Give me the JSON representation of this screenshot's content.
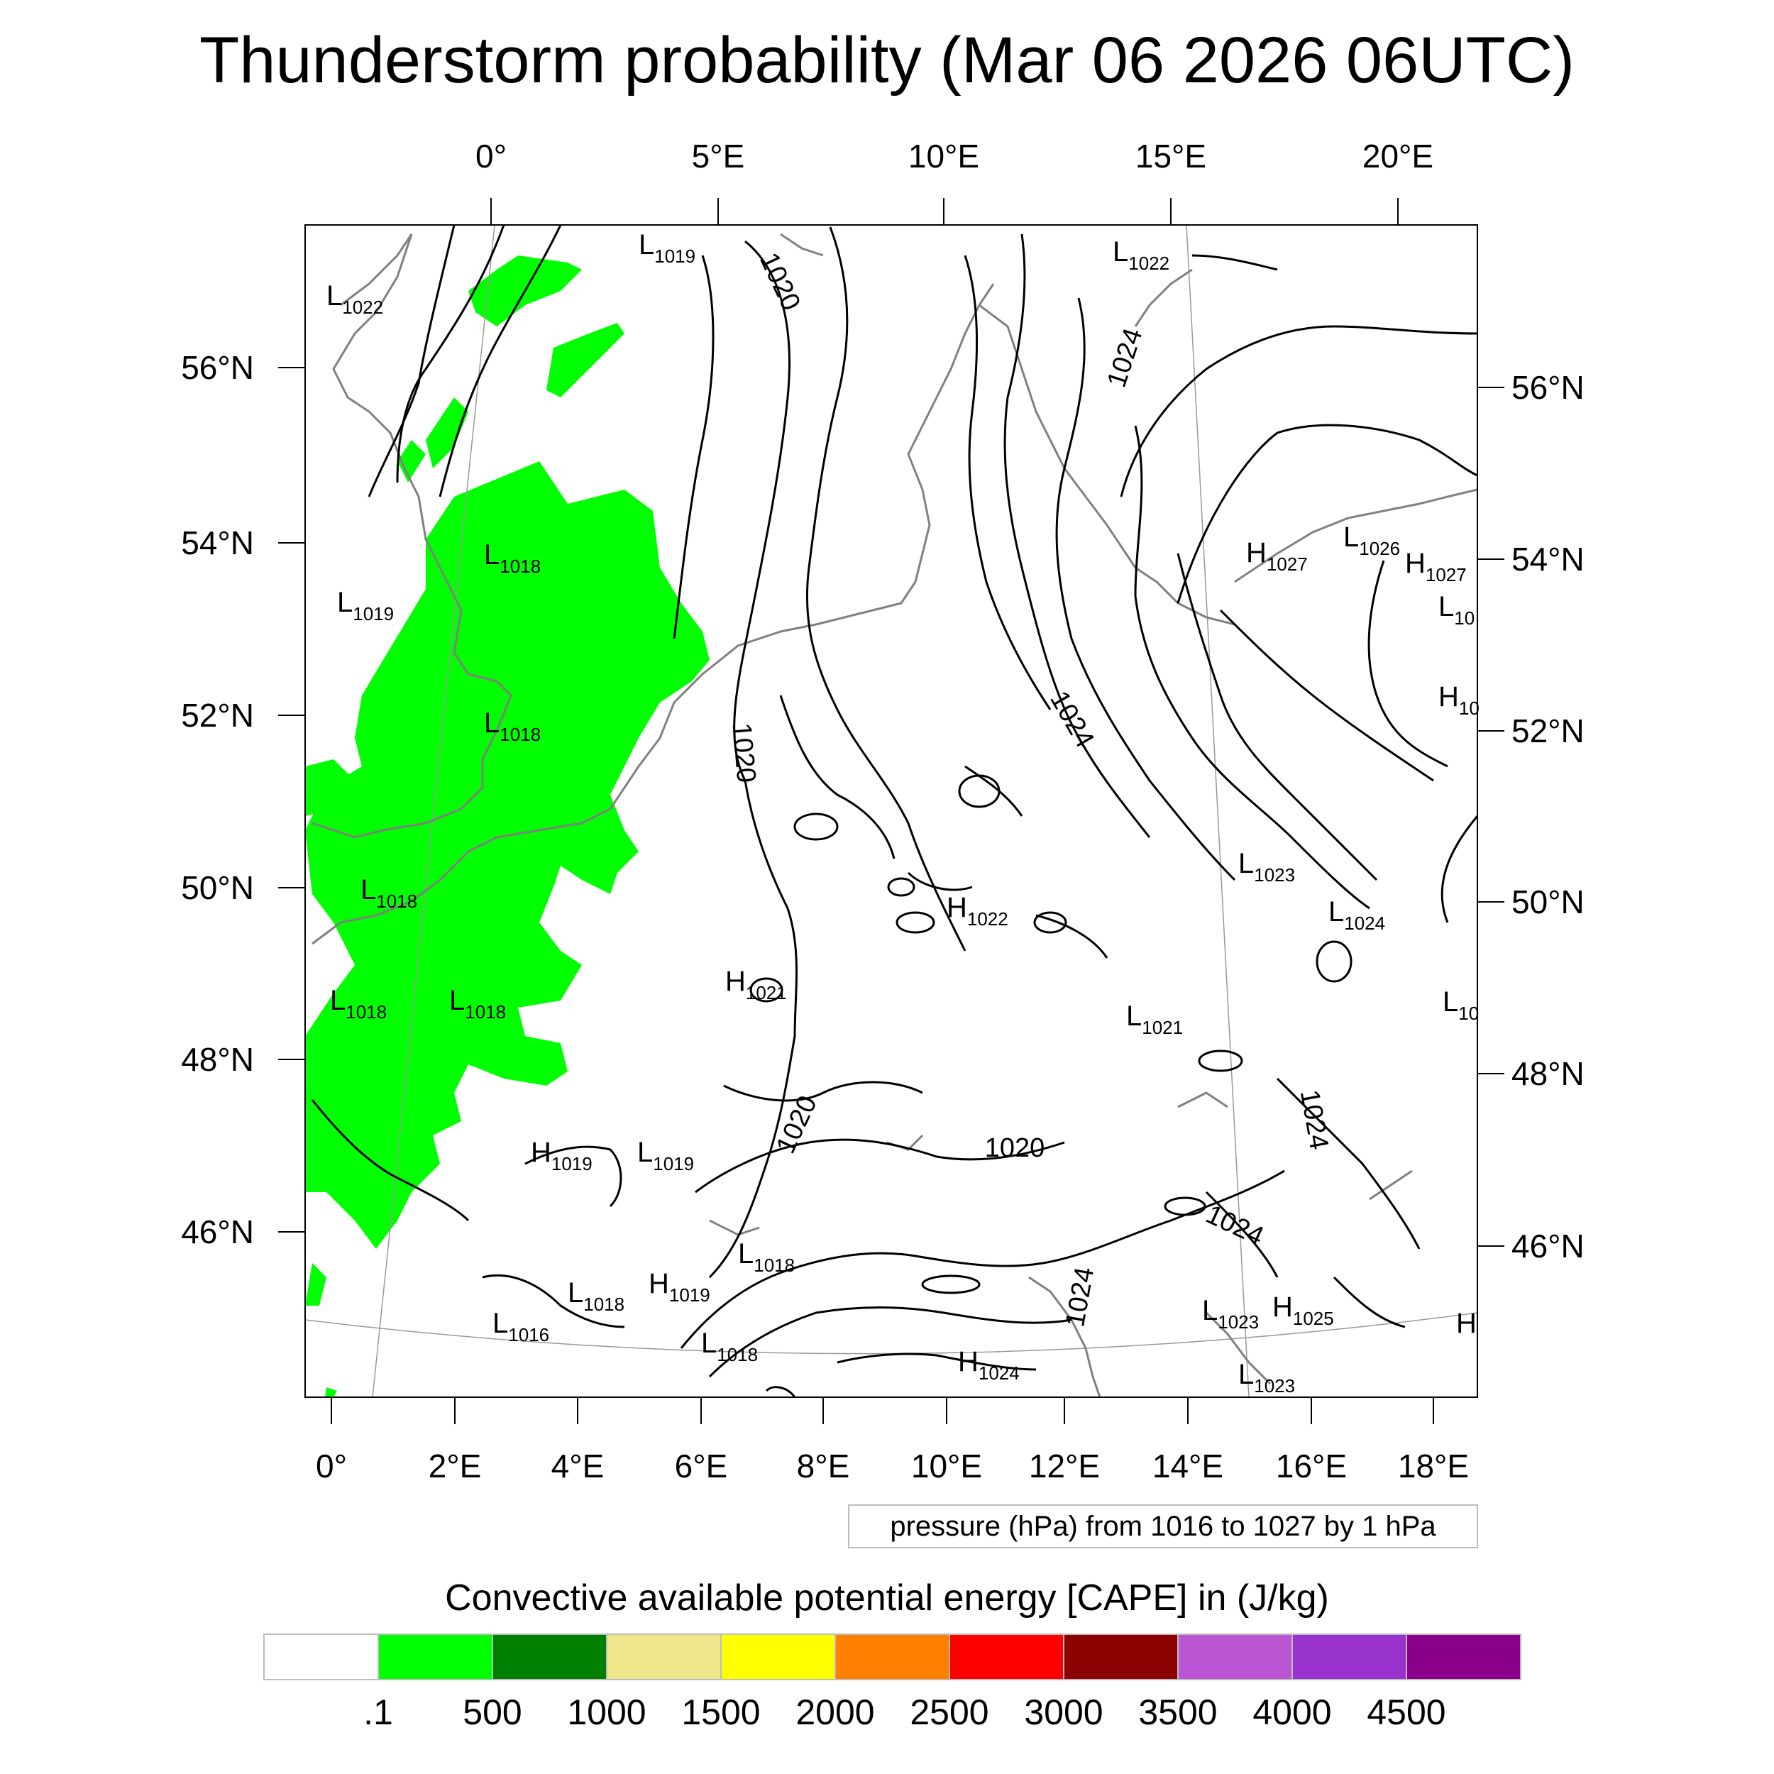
{
  "title": "Thunderstorm probability (Mar 06 2026 06UTC)",
  "map": {
    "top_lon_labels": [
      "0°",
      "5°E",
      "10°E",
      "15°E",
      "20°E"
    ],
    "bottom_lon_labels": [
      "0°",
      "2°E",
      "4°E",
      "6°E",
      "8°E",
      "10°E",
      "12°E",
      "14°E",
      "16°E",
      "18°E"
    ],
    "left_lat_labels": [
      "56°N",
      "54°N",
      "52°N",
      "50°N",
      "48°N",
      "46°N"
    ],
    "right_lat_labels": [
      "56°N",
      "54°N",
      "52°N",
      "50°N",
      "48°N",
      "46°N"
    ],
    "isobar_labels": [
      "1020",
      "1020",
      "1020",
      "1020",
      "1024",
      "1024",
      "1024",
      "1024",
      "1024"
    ],
    "pressure_centers": [
      {
        "kind": "L",
        "value": "1022"
      },
      {
        "kind": "L",
        "value": "1019"
      },
      {
        "kind": "L",
        "value": "1022"
      },
      {
        "kind": "L",
        "value": "1018"
      },
      {
        "kind": "L",
        "value": "1019"
      },
      {
        "kind": "L",
        "value": "1018"
      },
      {
        "kind": "L",
        "value": "1018"
      },
      {
        "kind": "L",
        "value": "1018"
      },
      {
        "kind": "L",
        "value": "1018"
      },
      {
        "kind": "H",
        "value": "1022"
      },
      {
        "kind": "H",
        "value": "1021"
      },
      {
        "kind": "L",
        "value": "1021"
      },
      {
        "kind": "L",
        "value": "1023"
      },
      {
        "kind": "L",
        "value": "1024"
      },
      {
        "kind": "H",
        "value": "1027"
      },
      {
        "kind": "L",
        "value": "1026"
      },
      {
        "kind": "H",
        "value": "1027"
      },
      {
        "kind": "L",
        "value": "10"
      },
      {
        "kind": "H",
        "value": "10"
      },
      {
        "kind": "L",
        "value": "10"
      },
      {
        "kind": "H",
        "value": "1019"
      },
      {
        "kind": "L",
        "value": "1019"
      },
      {
        "kind": "L",
        "value": "1018"
      },
      {
        "kind": "H",
        "value": "1019"
      },
      {
        "kind": "L",
        "value": "1018"
      },
      {
        "kind": "L",
        "value": "1016"
      },
      {
        "kind": "L",
        "value": "1018"
      },
      {
        "kind": "H",
        "value": "1024"
      },
      {
        "kind": "L",
        "value": "1023"
      },
      {
        "kind": "H",
        "value": "1025"
      },
      {
        "kind": "L",
        "value": "1023"
      },
      {
        "kind": "H",
        "value": ""
      }
    ]
  },
  "pressure_note": "pressure (hPa) from 1016 to 1027 by 1 hPa",
  "legend": {
    "title": "Convective available potential energy [CAPE] in (J/kg)",
    "colors": [
      "#ffffff",
      "#00ff00",
      "#008000",
      "#f0e68c",
      "#ffff00",
      "#ff8000",
      "#ff0000",
      "#8b0000",
      "#ba55d3",
      "#9932cc",
      "#8b008b"
    ],
    "labels": [
      ".1",
      "500",
      "1000",
      "1500",
      "2000",
      "2500",
      "3000",
      "3500",
      "4000",
      "4500"
    ]
  },
  "style": {
    "cape_fill": "#00ff00",
    "coast_color": "#808080",
    "isobar_color": "#000000",
    "grid_color": "#999999"
  }
}
